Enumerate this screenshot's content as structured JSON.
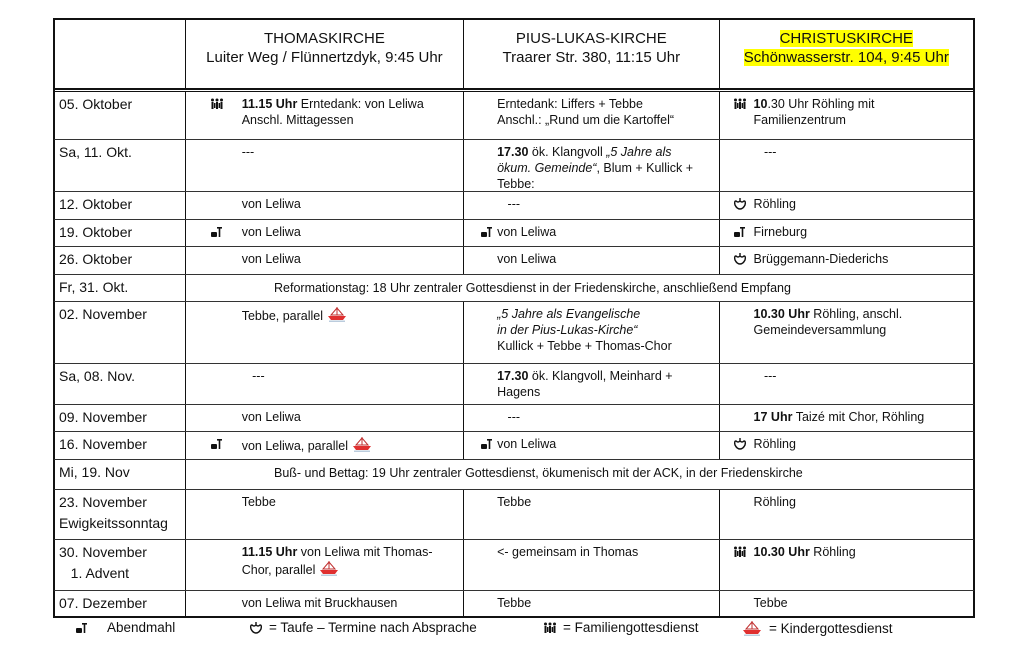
{
  "header": {
    "columns": [
      {
        "title": "",
        "sub": ""
      },
      {
        "title": "THOMASKIRCHE",
        "sub": "Luiter Weg / Flünnertzdyk, 9:45 Uhr"
      },
      {
        "title": "PIUS-LUKAS-KIRCHE",
        "sub": "Traarer Str. 380, 11:15 Uhr"
      },
      {
        "title": "CHRISTUSKIRCHE",
        "sub": "Schönwasserstr. 104, 9:45 Uhr",
        "highlight": "#ffff00"
      }
    ]
  },
  "rows": [
    {
      "date": [
        "05. Oktober"
      ],
      "thomas": {
        "icon": "family",
        "lines": [
          [
            {
              "t": "11.15 Uhr",
              "b": 1
            },
            {
              "t": " Erntedank: von Leliwa"
            }
          ],
          [
            {
              "t": "Anschl. Mittagessen"
            }
          ]
        ]
      },
      "pius": {
        "lines": [
          [
            {
              "t": "Erntedank: Liffers + Tebbe"
            }
          ],
          [
            {
              "t": "Anschl.: „Rund um die Kartoffel“"
            }
          ]
        ]
      },
      "christus": {
        "icon": "family",
        "lines": [
          [
            {
              "t": "10",
              "b": 1
            },
            {
              "t": ".30 Uhr Röhling mit"
            }
          ],
          [
            {
              "t": "Familienzentrum"
            }
          ]
        ]
      }
    },
    {
      "date": [
        "Sa, 11. Okt."
      ],
      "thomas": {
        "lines": [
          [
            {
              "t": "---"
            }
          ]
        ]
      },
      "pius": {
        "lines": [
          [
            {
              "t": "17.30",
              "b": 1
            },
            {
              "t": " ök. Klangvoll "
            },
            {
              "t": "„5 Jahre als",
              "i": 1
            }
          ],
          [
            {
              "t": "ökum. Gemeinde“",
              "i": 1
            },
            {
              "t": ", Blum + Kullick +"
            }
          ],
          [
            {
              "t": "Tebbe:"
            }
          ]
        ]
      },
      "christus": {
        "lines": [
          [
            {
              "t": "   ---"
            }
          ]
        ]
      }
    },
    {
      "date": [
        "12. Oktober"
      ],
      "thomas": {
        "lines": [
          [
            {
              "t": "von Leliwa"
            }
          ]
        ]
      },
      "pius": {
        "lines": [
          [
            {
              "t": "   ---"
            }
          ]
        ]
      },
      "christus": {
        "icon": "baptism",
        "lines": [
          [
            {
              "t": "Röhling"
            }
          ]
        ]
      }
    },
    {
      "date": [
        "19. Oktober"
      ],
      "thomas": {
        "icon": "communion",
        "lines": [
          [
            {
              "t": "von Leliwa"
            }
          ]
        ]
      },
      "pius": {
        "icon": "communion",
        "lines": [
          [
            {
              "t": "von Leliwa"
            }
          ]
        ]
      },
      "christus": {
        "icon": "communion",
        "lines": [
          [
            {
              "t": "Firneburg"
            }
          ]
        ]
      }
    },
    {
      "date": [
        "26. Oktober"
      ],
      "thomas": {
        "lines": [
          [
            {
              "t": "von Leliwa"
            }
          ]
        ]
      },
      "pius": {
        "lines": [
          [
            {
              "t": "von Leliwa"
            }
          ]
        ]
      },
      "christus": {
        "icon": "baptism",
        "lines": [
          [
            {
              "t": "Brüggemann-Diederichs"
            }
          ]
        ]
      }
    },
    {
      "date": [
        "Fr, 31. Okt."
      ],
      "span": "Reformationstag: 18 Uhr zentraler Gottesdienst in der Friedenskirche, anschließend Empfang"
    },
    {
      "date": [
        "02. November"
      ],
      "thomas": {
        "lines": [
          [
            {
              "t": "Tebbe, parallel"
            },
            {
              "icon": "boat"
            }
          ]
        ]
      },
      "pius": {
        "lines": [
          [
            {
              "t": "„5 Jahre als Evangelische",
              "i": 1
            }
          ],
          [
            {
              "t": "in der Pius-Lukas-Kirche“",
              "i": 1
            }
          ],
          [
            {
              "t": "Kullick + Tebbe + Thomas-Chor"
            }
          ]
        ]
      },
      "christus": {
        "lines": [
          [
            {
              "t": "10.30 Uhr",
              "b": 1
            },
            {
              "t": " Röhling, anschl."
            }
          ],
          [
            {
              "t": "Gemeindeversammlung"
            }
          ]
        ]
      }
    },
    {
      "date": [
        "Sa, 08. Nov."
      ],
      "thomas": {
        "lines": [
          [
            {
              "t": "   ---"
            }
          ]
        ]
      },
      "pius": {
        "lines": [
          [
            {
              "t": "17.30",
              "b": 1
            },
            {
              "t": " ök. Klangvoll, Meinhard +"
            }
          ],
          [
            {
              "t": "Hagens"
            }
          ]
        ]
      },
      "christus": {
        "lines": [
          [
            {
              "t": "   ---"
            }
          ]
        ]
      }
    },
    {
      "date": [
        "09. November"
      ],
      "thomas": {
        "lines": [
          [
            {
              "t": "von Leliwa"
            }
          ]
        ]
      },
      "pius": {
        "lines": [
          [
            {
              "t": "   ---"
            }
          ]
        ]
      },
      "christus": {
        "lines": [
          [
            {
              "t": "17 Uhr",
              "b": 1
            },
            {
              "t": " Taizé mit Chor, Röhling"
            }
          ]
        ]
      }
    },
    {
      "date": [
        "16. November"
      ],
      "thomas": {
        "icon": "communion",
        "lines": [
          [
            {
              "t": "von Leliwa, parallel"
            },
            {
              "icon": "boat"
            }
          ]
        ]
      },
      "pius": {
        "icon": "communion",
        "lines": [
          [
            {
              "t": "von Leliwa"
            }
          ]
        ]
      },
      "christus": {
        "icon": "baptism",
        "lines": [
          [
            {
              "t": "Röhling"
            }
          ]
        ]
      }
    },
    {
      "date": [
        "Mi, 19. Nov"
      ],
      "span": "Buß- und Bettag: 19 Uhr zentraler Gottesdienst, ökumenisch mit der ACK, in der Friedenskirche"
    },
    {
      "date": [
        "23. November",
        "Ewigkeitssonntag"
      ],
      "thomas": {
        "lines": [
          [
            {
              "t": "Tebbe"
            }
          ]
        ]
      },
      "pius": {
        "lines": [
          [
            {
              "t": "Tebbe"
            }
          ]
        ]
      },
      "christus": {
        "lines": [
          [
            {
              "t": "Röhling"
            }
          ]
        ]
      }
    },
    {
      "date": [
        "30. November",
        "   1. Advent"
      ],
      "thomas": {
        "lines": [
          [
            {
              "t": "11.15 Uhr",
              "b": 1
            },
            {
              "t": " von Leliwa mit Thomas-"
            }
          ],
          [
            {
              "t": "Chor, parallel"
            },
            {
              "icon": "boat"
            }
          ]
        ]
      },
      "pius": {
        "lines": [
          [
            {
              "t": "<- gemeinsam in Thomas"
            }
          ]
        ]
      },
      "christus": {
        "icon": "family",
        "lines": [
          [
            {
              "t": "10.30 Uhr",
              "b": 1
            },
            {
              "t": " Röhling"
            }
          ]
        ]
      }
    },
    {
      "date": [
        "07. Dezember"
      ],
      "thomas": {
        "lines": [
          [
            {
              "t": "von Leliwa mit Bruckhausen"
            }
          ]
        ]
      },
      "pius": {
        "lines": [
          [
            {
              "t": "Tebbe"
            }
          ]
        ]
      },
      "christus": {
        "lines": [
          [
            {
              "t": "Tebbe"
            }
          ]
        ]
      }
    }
  ],
  "legend": [
    {
      "icon": "communion",
      "label": "Abendmahl"
    },
    {
      "icon": "baptism",
      "label": "= Taufe – Termine nach Absprache"
    },
    {
      "icon": "family",
      "label": "= Familiengottesdienst"
    },
    {
      "icon": "boat",
      "label": "= Kindergottesdienst"
    }
  ],
  "colors": {
    "highlight": "#ffff00",
    "boat": "#e03030"
  }
}
